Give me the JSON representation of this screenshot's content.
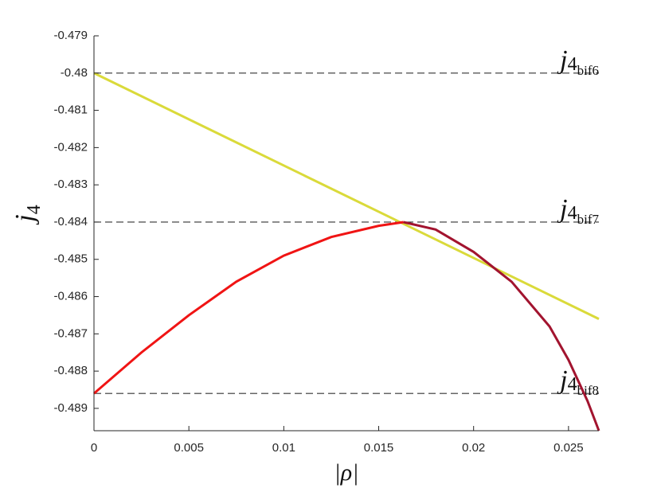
{
  "chart_data": {
    "type": "line",
    "xlabel": "|ρ|",
    "ylabel": {
      "base": "j",
      "sub": "4"
    },
    "xlim": [
      0,
      0.0266
    ],
    "ylim": [
      -0.4896,
      -0.479
    ],
    "xticks": [
      0,
      0.005,
      0.01,
      0.015,
      0.02,
      0.025
    ],
    "yticks": [
      -0.479,
      -0.48,
      -0.481,
      -0.482,
      -0.483,
      -0.484,
      -0.485,
      -0.486,
      -0.487,
      -0.488,
      -0.489
    ],
    "series": [
      {
        "color": "#dada3a",
        "x": [
          0,
          0.0266
        ],
        "values": [
          -0.48,
          -0.4866
        ]
      },
      {
        "color": "#f01414",
        "x": [
          0,
          0.0025,
          0.005,
          0.0075,
          0.01,
          0.0125,
          0.015,
          0.0163
        ],
        "values": [
          -0.4886,
          -0.4875,
          -0.4865,
          -0.4856,
          -0.4849,
          -0.4844,
          -0.4841,
          -0.484
        ]
      },
      {
        "color": "#a2142f",
        "x": [
          0.0163,
          0.018,
          0.02,
          0.022,
          0.024,
          0.025,
          0.026,
          0.0266
        ],
        "values": [
          -0.484,
          -0.4842,
          -0.4848,
          -0.4856,
          -0.4868,
          -0.4877,
          -0.4888,
          -0.4896
        ]
      }
    ],
    "hlines": [
      {
        "value": -0.48,
        "label": {
          "base": "j",
          "sub": "4",
          "subsub": "bif6"
        }
      },
      {
        "value": -0.484,
        "label": {
          "base": "j",
          "sub": "4",
          "subsub": "bif7"
        }
      },
      {
        "value": -0.4886,
        "label": {
          "base": "j",
          "sub": "4",
          "subsub": "bif8"
        }
      }
    ]
  }
}
